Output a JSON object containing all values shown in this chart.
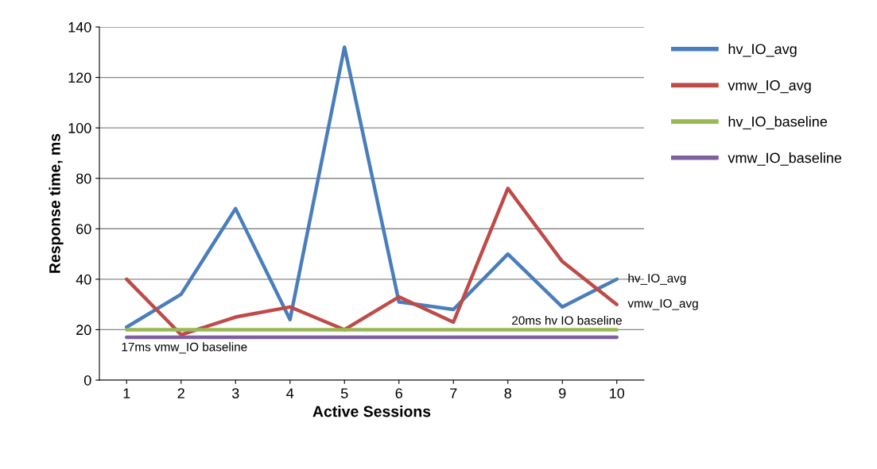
{
  "chart_data": {
    "type": "line",
    "xlabel": "Active Sessions",
    "ylabel": "Response time, ms",
    "categories": [
      "1",
      "2",
      "3",
      "4",
      "5",
      "6",
      "7",
      "8",
      "9",
      "10"
    ],
    "series": [
      {
        "name": "hv_IO_avg",
        "color": "#4a7ebb",
        "values": [
          21,
          34,
          68,
          24,
          132,
          31,
          28,
          50,
          29,
          40
        ]
      },
      {
        "name": "vmw_IO_avg",
        "color": "#be4b48",
        "values": [
          40,
          18,
          25,
          29,
          20,
          33,
          23,
          76,
          47,
          30
        ]
      },
      {
        "name": "hv_IO_baseline",
        "color": "#98b954",
        "values": [
          20,
          20,
          20,
          20,
          20,
          20,
          20,
          20,
          20,
          20
        ]
      },
      {
        "name": "vmw_IO_baseline",
        "color": "#7d60a0",
        "values": [
          17,
          17,
          17,
          17,
          17,
          17,
          17,
          17,
          17,
          17
        ]
      }
    ],
    "ylim": [
      0,
      140
    ],
    "yticks": [
      0,
      20,
      40,
      60,
      80,
      100,
      120,
      140
    ],
    "grid": "y",
    "legend": "right",
    "marker": "none",
    "line_style": "solid",
    "annotations": [
      {
        "text": "hv_IO_avg",
        "x": "10",
        "y": 40
      },
      {
        "text": "vmw_IO_avg",
        "x": "10",
        "y": 30
      },
      {
        "text": "20ms hv IO baseline",
        "x": "10",
        "y": 20
      },
      {
        "text": "17ms vmw_IO baseline",
        "x": "1",
        "y": 17
      }
    ]
  }
}
